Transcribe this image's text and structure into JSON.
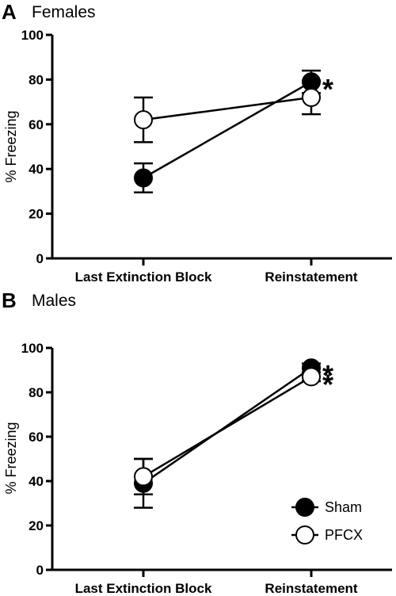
{
  "chart_data": [
    {
      "type": "line",
      "panel": "A",
      "title": "Females",
      "xlabel": "",
      "ylabel": "% Freezing",
      "ylim": [
        0,
        100
      ],
      "yticks": [
        0,
        20,
        40,
        60,
        80,
        100
      ],
      "categories": [
        "Last Extinction Block",
        "Reinstatement"
      ],
      "series": [
        {
          "name": "Sham",
          "marker": "filled-circle",
          "color": "#000000",
          "values": [
            36,
            79
          ],
          "error": [
            6.5,
            5
          ]
        },
        {
          "name": "PFCX",
          "marker": "open-circle",
          "color": "#ffffff",
          "values": [
            62,
            72
          ],
          "error": [
            10,
            7.5
          ]
        }
      ],
      "annotations": [
        {
          "text": "*",
          "category": "Reinstatement",
          "series": "Sham"
        }
      ],
      "legend": null
    },
    {
      "type": "line",
      "panel": "B",
      "title": "Males",
      "xlabel": "",
      "ylabel": "% Freezing",
      "ylim": [
        0,
        100
      ],
      "yticks": [
        0,
        20,
        40,
        60,
        80,
        100
      ],
      "categories": [
        "Last Extinction Block",
        "Reinstatement"
      ],
      "series": [
        {
          "name": "Sham",
          "marker": "filled-circle",
          "color": "#000000",
          "values": [
            39,
            91
          ],
          "error": [
            11,
            2
          ]
        },
        {
          "name": "PFCX",
          "marker": "open-circle",
          "color": "#ffffff",
          "values": [
            42,
            87
          ],
          "error": [
            8,
            2
          ]
        }
      ],
      "annotations": [
        {
          "text": "*",
          "category": "Reinstatement",
          "series": "Sham"
        },
        {
          "text": "*",
          "category": "Reinstatement",
          "series": "PFCX"
        }
      ],
      "legend": "bottom-right"
    }
  ]
}
